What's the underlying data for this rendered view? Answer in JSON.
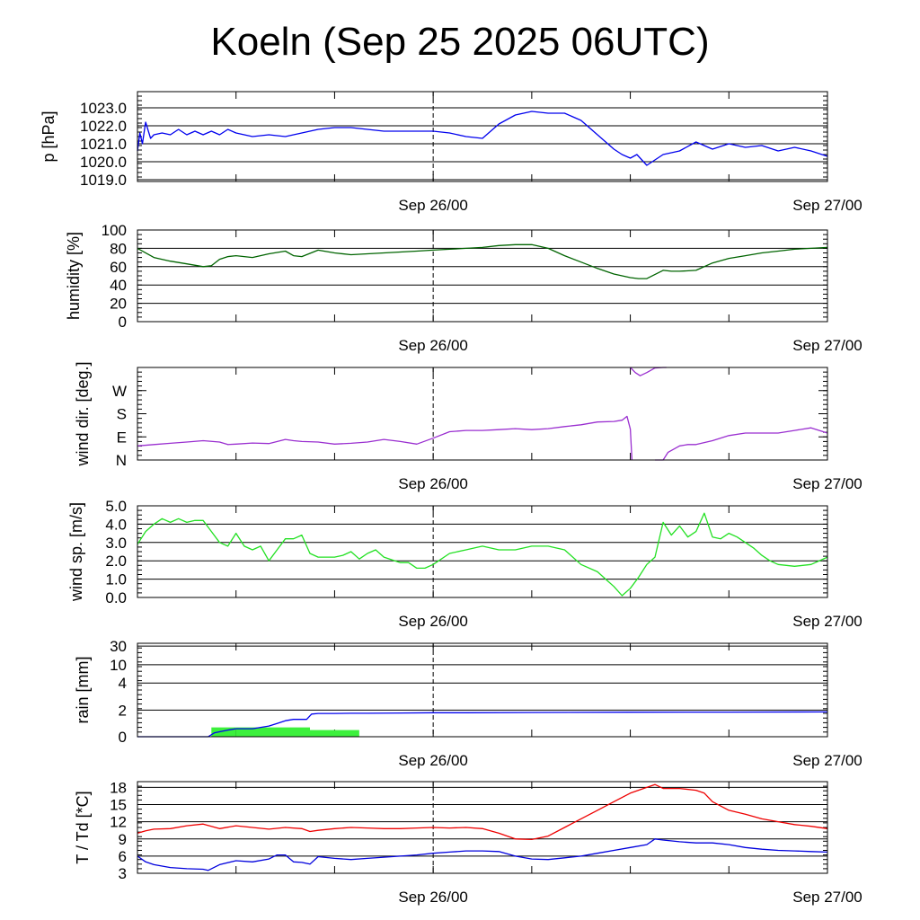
{
  "title": "Koeln (Sep 25 2025 06UTC)",
  "colors": {
    "pressure": "#0000ee",
    "humidity": "#006400",
    "wind_dir": "#9a2fd0",
    "wind_speed": "#22e022",
    "rain_line": "#0000ee",
    "rain_bar": "#3cf03c",
    "temperature": "#ee0000",
    "dewpoint": "#0000dd"
  },
  "chart_data": [
    {
      "type": "line",
      "id": "pressure",
      "ylabel": "p [hPa]",
      "yticks": [
        "1019.0",
        "1020.0",
        "1021.0",
        "1022.0",
        "1023.0"
      ],
      "ytick_values": [
        1019,
        1020,
        1021,
        1022,
        1023
      ],
      "ylim": [
        1018.9,
        1023.9
      ],
      "xlim": [
        0,
        42
      ],
      "x_time_labels": [
        "Sep 26/00",
        "Sep 27/00"
      ],
      "x_time_label_hours": [
        18,
        42
      ],
      "series": [
        {
          "name": "pressure",
          "x": [
            0,
            0.15,
            0.3,
            0.5,
            0.8,
            1,
            1.5,
            2,
            2.5,
            3,
            3.5,
            4,
            4.5,
            5,
            5.5,
            6,
            7,
            8,
            9,
            10,
            11,
            12,
            13,
            14,
            15,
            16,
            17,
            18,
            19,
            20,
            21,
            22,
            23,
            24,
            25,
            26,
            27,
            28,
            29,
            29.5,
            30,
            30.4,
            31,
            32,
            33,
            34,
            35,
            36,
            37,
            38,
            39,
            40,
            41,
            42
          ],
          "values": [
            1020.6,
            1021.6,
            1021.0,
            1022.2,
            1021.3,
            1021.5,
            1021.6,
            1021.5,
            1021.8,
            1021.5,
            1021.7,
            1021.5,
            1021.7,
            1021.5,
            1021.8,
            1021.6,
            1021.4,
            1021.5,
            1021.4,
            1021.6,
            1021.8,
            1021.9,
            1021.9,
            1021.8,
            1021.7,
            1021.7,
            1021.7,
            1021.7,
            1021.6,
            1021.4,
            1021.3,
            1022.1,
            1022.6,
            1022.8,
            1022.7,
            1022.7,
            1022.3,
            1021.5,
            1020.7,
            1020.4,
            1020.2,
            1020.4,
            1019.8,
            1020.4,
            1020.6,
            1021.1,
            1020.7,
            1021.0,
            1020.8,
            1020.9,
            1020.6,
            1020.8,
            1020.6,
            1020.3
          ]
        }
      ]
    },
    {
      "type": "line",
      "id": "humidity",
      "ylabel": "humidity [%]",
      "yticks": [
        "0",
        "20",
        "40",
        "60",
        "80",
        "100"
      ],
      "ytick_values": [
        0,
        20,
        40,
        60,
        80,
        100
      ],
      "ylim": [
        0,
        100
      ],
      "xlim": [
        0,
        42
      ],
      "x_time_labels": [
        "Sep 26/00",
        "Sep 27/00"
      ],
      "x_time_label_hours": [
        18,
        42
      ],
      "series": [
        {
          "name": "humidity",
          "x": [
            0,
            1,
            2,
            3,
            4,
            4.5,
            5,
            5.5,
            6,
            7,
            8,
            9,
            9.5,
            10,
            11,
            12,
            13,
            14,
            15,
            16,
            17,
            18,
            19,
            20,
            21,
            22,
            23,
            24,
            25,
            26,
            27,
            28,
            29,
            30,
            30.5,
            31,
            32,
            32.5,
            33,
            34,
            35,
            36,
            37,
            38,
            39,
            40,
            41,
            42
          ],
          "values": [
            80,
            70,
            66,
            63,
            60,
            61,
            68,
            71,
            72,
            70,
            74,
            77,
            72,
            71,
            78,
            75,
            73,
            74,
            75,
            76,
            77,
            78,
            79,
            80,
            81,
            83,
            84,
            84,
            80,
            72,
            65,
            58,
            52,
            48,
            47,
            47,
            56,
            55,
            55,
            56,
            64,
            69,
            72,
            75,
            77,
            79,
            80,
            81
          ]
        }
      ]
    },
    {
      "type": "scatter",
      "id": "wind_dir",
      "ylabel": "wind dir. [deg.]",
      "yticks": [
        "N",
        "E",
        "S",
        "W"
      ],
      "ytick_values": [
        0,
        90,
        180,
        270
      ],
      "ylim": [
        0,
        360
      ],
      "xlim": [
        0,
        42
      ],
      "x_time_labels": [
        "Sep 26/00",
        "Sep 27/00"
      ],
      "x_time_label_hours": [
        18,
        42
      ],
      "series": [
        {
          "name": "wind direction",
          "x": [
            0,
            1,
            2,
            3,
            4,
            5,
            5.5,
            6,
            7,
            8,
            9,
            9.5,
            10,
            11,
            12,
            13,
            14,
            15,
            16,
            17,
            18,
            19,
            20,
            21,
            22,
            23,
            24,
            25,
            26,
            27,
            28,
            29,
            29.5,
            29.8,
            30,
            30.1
          ],
          "values": [
            55,
            60,
            65,
            70,
            75,
            70,
            60,
            62,
            66,
            64,
            80,
            75,
            72,
            70,
            62,
            65,
            70,
            80,
            72,
            62,
            85,
            110,
            115,
            115,
            118,
            122,
            118,
            122,
            130,
            137,
            148,
            150,
            155,
            170,
            120,
            0
          ]
        },
        {
          "name": "wind direction (continued)",
          "x": [
            30,
            30.3,
            30.6,
            31,
            31.5,
            32,
            32.2
          ],
          "values": [
            360,
            340,
            328,
            340,
            358,
            360,
            360
          ]
        },
        {
          "name": "wind direction (after wrap)",
          "x": [
            31.5,
            32,
            32.3,
            33,
            33.5,
            34,
            35,
            36,
            37,
            38,
            39,
            40,
            41,
            42
          ],
          "values": [
            0,
            0,
            30,
            55,
            60,
            60,
            75,
            95,
            105,
            105,
            105,
            115,
            125,
            105
          ]
        }
      ]
    },
    {
      "type": "line",
      "id": "wind_speed",
      "ylabel": "wind sp. [m/s]",
      "yticks": [
        "0.0",
        "1.0",
        "2.0",
        "3.0",
        "4.0",
        "5.0"
      ],
      "ytick_values": [
        0,
        1,
        2,
        3,
        4,
        5
      ],
      "ylim": [
        0,
        5
      ],
      "xlim": [
        0,
        42
      ],
      "x_time_labels": [
        "Sep 26/00",
        "Sep 27/00"
      ],
      "x_time_label_hours": [
        18,
        42
      ],
      "series": [
        {
          "name": "wind speed",
          "x": [
            0,
            0.5,
            1,
            1.5,
            2,
            2.5,
            3,
            3.5,
            4,
            4.5,
            5,
            5.5,
            6,
            6.5,
            7,
            7.5,
            8,
            8.5,
            9,
            9.5,
            10,
            10.5,
            11,
            11.5,
            12,
            12.5,
            13,
            13.5,
            14,
            14.5,
            15,
            16,
            16.5,
            17,
            17.5,
            18,
            19,
            20,
            21,
            22,
            23,
            24,
            25,
            26,
            27,
            28,
            28.5,
            29,
            29.5,
            30,
            30.5,
            31,
            31.5,
            32,
            32.5,
            33,
            33.5,
            34,
            34.5,
            35,
            35.5,
            36,
            36.5,
            37,
            37.5,
            38,
            38.5,
            39,
            40,
            41,
            42
          ],
          "values": [
            2.9,
            3.6,
            4.0,
            4.3,
            4.1,
            4.3,
            4.1,
            4.2,
            4.2,
            3.6,
            3.0,
            2.8,
            3.5,
            2.8,
            2.6,
            2.8,
            2.0,
            2.6,
            3.2,
            3.2,
            3.4,
            2.4,
            2.2,
            2.2,
            2.2,
            2.3,
            2.5,
            2.1,
            2.4,
            2.6,
            2.2,
            1.9,
            1.9,
            1.6,
            1.6,
            1.8,
            2.4,
            2.6,
            2.8,
            2.6,
            2.6,
            2.8,
            2.8,
            2.6,
            1.8,
            1.4,
            1.0,
            0.6,
            0.1,
            0.5,
            1.1,
            1.8,
            2.2,
            4.1,
            3.4,
            3.9,
            3.3,
            3.6,
            4.6,
            3.3,
            3.2,
            3.5,
            3.3,
            3.0,
            2.7,
            2.3,
            2.0,
            1.8,
            1.7,
            1.8,
            2.2
          ]
        }
      ]
    },
    {
      "type": "bar",
      "id": "rain",
      "ylabel": "rain [mm]",
      "yticks": [
        "0",
        "2",
        "4",
        "10",
        "30"
      ],
      "ytick_values": [
        0,
        2,
        4,
        10,
        30
      ],
      "ylim": [
        0,
        30
      ],
      "xlim": [
        0,
        42
      ],
      "x_time_labels": [
        "Sep 26/00",
        "Sep 27/00"
      ],
      "x_time_label_hours": [
        18,
        42
      ],
      "bars": {
        "name": "rain per interval",
        "x_start": [
          4.5,
          6,
          10.5
        ],
        "x_end": [
          6,
          10.5,
          13.5
        ],
        "values": [
          0.7,
          0.7,
          0.5
        ]
      },
      "series": [
        {
          "name": "accumulated rain",
          "x": [
            0,
            4.3,
            4.7,
            5.5,
            6,
            7,
            7.5,
            8,
            8.5,
            9,
            9.5,
            10.3,
            10.6,
            11,
            12,
            13,
            14,
            16,
            18,
            20,
            24,
            30,
            36,
            42
          ],
          "values": [
            0,
            0,
            0.3,
            0.5,
            0.6,
            0.6,
            0.7,
            0.8,
            1.0,
            1.2,
            1.3,
            1.3,
            1.7,
            1.75,
            1.75,
            1.76,
            1.76,
            1.78,
            1.8,
            1.8,
            1.82,
            1.84,
            1.85,
            1.86
          ]
        }
      ]
    },
    {
      "type": "line",
      "id": "temperature",
      "ylabel": "T / Td [*C]",
      "yticks": [
        "3",
        "6",
        "9",
        "12",
        "15",
        "18"
      ],
      "ytick_values": [
        3,
        6,
        9,
        12,
        15,
        18
      ],
      "ylim": [
        3,
        19
      ],
      "xlim": [
        0,
        42
      ],
      "x_time_labels": [
        "Sep 26/00",
        "Sep 27/00"
      ],
      "x_time_label_hours": [
        18,
        42
      ],
      "series": [
        {
          "name": "T",
          "x": [
            0,
            0.5,
            1,
            2,
            3,
            4,
            5,
            6,
            7,
            8,
            9,
            10,
            10.5,
            11,
            12,
            13,
            14,
            15,
            16,
            17,
            18,
            19,
            20,
            21,
            22,
            23,
            24,
            25,
            26,
            27,
            28,
            29,
            30,
            31,
            31.5,
            32,
            33,
            34,
            34.5,
            35,
            36,
            37,
            38,
            39,
            40,
            41,
            42
          ],
          "values": [
            10.0,
            10.4,
            10.7,
            10.8,
            11.3,
            11.6,
            10.8,
            11.3,
            11.0,
            10.7,
            11.0,
            10.8,
            10.3,
            10.5,
            10.8,
            11.0,
            10.9,
            10.8,
            10.8,
            10.9,
            11.0,
            10.9,
            11.0,
            10.8,
            10.0,
            9.0,
            8.9,
            9.5,
            11.0,
            12.5,
            14.0,
            15.5,
            17.0,
            18.0,
            18.5,
            17.8,
            17.8,
            17.5,
            17.0,
            15.5,
            14.0,
            13.3,
            12.5,
            12.0,
            11.5,
            11.2,
            10.8
          ]
        },
        {
          "name": "Td",
          "x": [
            0,
            0.5,
            1,
            2,
            3,
            4,
            4.3,
            5,
            6,
            7,
            8,
            8.5,
            9,
            9.5,
            10,
            10.5,
            11,
            12,
            13,
            14,
            15,
            16,
            17,
            18,
            19,
            20,
            21,
            22,
            23,
            24,
            25,
            26,
            27,
            28,
            29,
            30,
            31,
            31.5,
            32,
            33,
            34,
            35,
            36,
            37,
            38,
            39,
            40,
            41,
            42
          ],
          "values": [
            6.0,
            5.0,
            4.5,
            4.0,
            3.8,
            3.7,
            3.5,
            4.5,
            5.2,
            5.0,
            5.5,
            6.2,
            6.2,
            5.0,
            4.9,
            4.6,
            5.9,
            5.6,
            5.4,
            5.6,
            5.8,
            6.0,
            6.2,
            6.5,
            6.7,
            6.9,
            6.9,
            6.8,
            6.0,
            5.5,
            5.4,
            5.7,
            6.0,
            6.5,
            7.0,
            7.5,
            8.0,
            9.0,
            8.8,
            8.5,
            8.3,
            8.3,
            8.0,
            7.5,
            7.2,
            7.0,
            6.9,
            6.8,
            6.7
          ]
        }
      ]
    }
  ]
}
